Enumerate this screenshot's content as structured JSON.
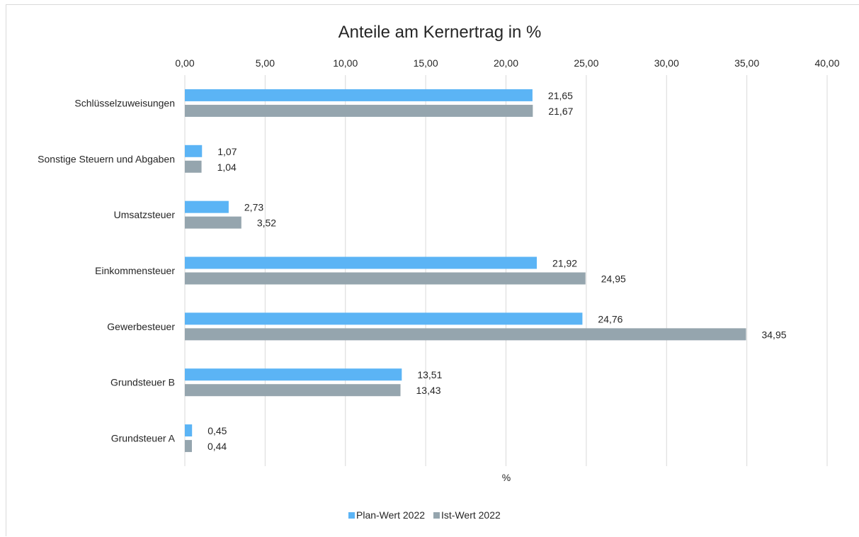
{
  "chart_data": {
    "type": "bar",
    "orientation": "horizontal",
    "title": "Anteile am Kernertrag in %",
    "xlabel": "%",
    "ylabel": "",
    "xlim": [
      0,
      40
    ],
    "x_ticks": [
      "0,00",
      "5,00",
      "10,00",
      "15,00",
      "20,00",
      "25,00",
      "30,00",
      "35,00",
      "40,00"
    ],
    "x_axis_position": "top",
    "grid": true,
    "legend_position": "bottom",
    "categories": [
      "Schlüsselzuweisungen",
      "Sonstige Steuern und Abgaben",
      "Umsatzsteuer",
      "Einkommensteuer",
      "Gewerbesteuer",
      "Grundsteuer B",
      "Grundsteuer A"
    ],
    "series": [
      {
        "name": "Plan-Wert 2022",
        "color": "#5bb4f5",
        "values": [
          21.65,
          1.07,
          2.73,
          21.92,
          24.76,
          13.51,
          0.45
        ],
        "labels": [
          "21,65",
          "1,07",
          "2,73",
          "21,92",
          "24,76",
          "13,51",
          "0,45"
        ]
      },
      {
        "name": "Ist-Wert 2022",
        "color": "#95a5ae",
        "values": [
          21.67,
          1.04,
          3.52,
          24.95,
          34.95,
          13.43,
          0.44
        ],
        "labels": [
          "21,67",
          "1,04",
          "3,52",
          "24,95",
          "34,95",
          "13,43",
          "0,44"
        ]
      }
    ]
  }
}
